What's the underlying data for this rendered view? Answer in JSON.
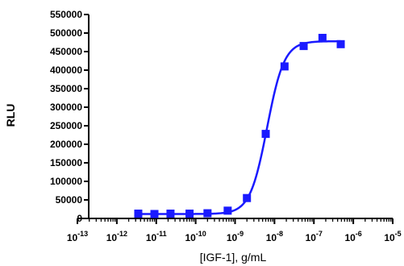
{
  "chart_data": {
    "type": "scatter",
    "title": "",
    "xlabel": "[IGF-1], g/mL",
    "ylabel": "RLU",
    "x_scale": "log",
    "xlim": [
      1e-13,
      1e-05
    ],
    "ylim": [
      0,
      550000
    ],
    "grid": false,
    "x_ticks": [
      {
        "base": "10",
        "exp": "-13",
        "value": 1e-13
      },
      {
        "base": "10",
        "exp": "-12",
        "value": 1e-12
      },
      {
        "base": "10",
        "exp": "-11",
        "value": 1e-11
      },
      {
        "base": "10",
        "exp": "-10",
        "value": 1e-10
      },
      {
        "base": "10",
        "exp": "-9",
        "value": 1e-09
      },
      {
        "base": "10",
        "exp": "-8",
        "value": 1e-08
      },
      {
        "base": "10",
        "exp": "-7",
        "value": 1e-07
      },
      {
        "base": "10",
        "exp": "-6",
        "value": 1e-06
      },
      {
        "base": "10",
        "exp": "-5",
        "value": 1e-05
      }
    ],
    "y_ticks": [
      "0",
      "50000",
      "100000",
      "150000",
      "200000",
      "250000",
      "300000",
      "350000",
      "400000",
      "450000",
      "500000",
      "550000"
    ],
    "series": [
      {
        "color": "#1a1aff",
        "marker": "square",
        "x": [
          3.5e-12,
          9e-12,
          2.3e-11,
          7e-11,
          2e-10,
          6.5e-10,
          2e-09,
          6e-09,
          1.8e-08,
          5.5e-08,
          1.65e-07,
          4.8e-07
        ],
        "y": [
          13000,
          12000,
          13000,
          13000,
          14000,
          21000,
          55000,
          228000,
          410000,
          465000,
          487000,
          470000
        ],
        "fit": {
          "model": "4PL",
          "bottom": 12000,
          "top": 478000,
          "ec50": 6.5e-09,
          "hill": 2.0
        }
      }
    ]
  }
}
